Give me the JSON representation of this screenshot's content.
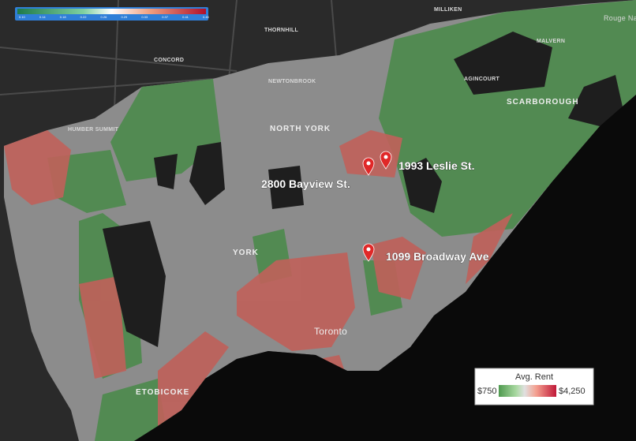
{
  "colorbar": {
    "ticks": [
      "0.10",
      "0.14",
      "0.18",
      "0.22",
      "0.26",
      "0.29",
      "0.33",
      "0.37",
      "0.41",
      "0.45"
    ]
  },
  "places": [
    "THORNHILL",
    "MILLIKEN",
    "CONCORD",
    "NEWTONBROOK",
    "NORTH YORK",
    "SCARBOROUGH",
    "AGINCOURT",
    "YORK",
    "ETOBICOKE",
    "Toronto",
    "HUMBER SUMMIT",
    "MALVERN",
    "Rouge National Urban Park"
  ],
  "markers": [
    {
      "label": "2800 Bayview St."
    },
    {
      "label": "1993 Leslie St."
    },
    {
      "label": "1099 Broadway Ave"
    }
  ],
  "legend": {
    "title": "Avg. Rent",
    "min_label": "$750",
    "max_label": "$4,250"
  }
}
